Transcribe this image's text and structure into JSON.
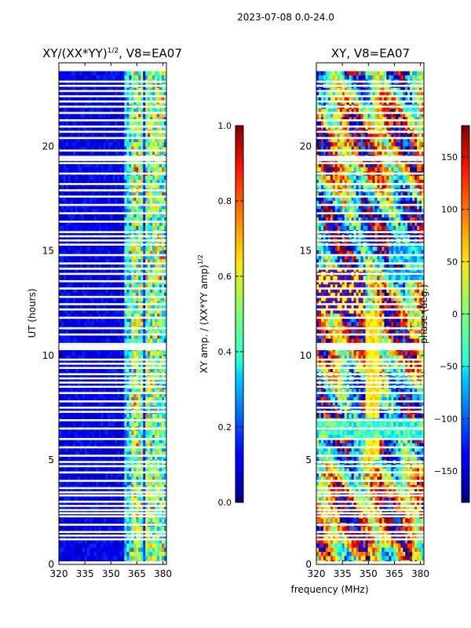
{
  "figure_title": "2023-07-08 0.0-24.0",
  "xlabel_shared": "frequency (MHz)",
  "chart_data": [
    {
      "type": "heatmap",
      "title_main": "XY/(XX*YY)",
      "title_sup": "1/2",
      "title_rest": ", V8=EA07",
      "xlabel": "frequency (MHz)",
      "ylabel": "UT (hours)",
      "xlim": [
        320,
        382
      ],
      "ylim": [
        0,
        24
      ],
      "xticks": [
        320,
        335,
        350,
        365,
        380
      ],
      "yticks": [
        0,
        5,
        10,
        15,
        20
      ],
      "colormap": "jet",
      "colorbar": {
        "label_main": "XY amp. / (XX*YY amp)",
        "label_sup": "1/2",
        "range": [
          0.0,
          1.0
        ],
        "ticks": [
          "0.0",
          "0.2",
          "0.4",
          "0.6",
          "0.8",
          "1.0"
        ]
      }
    },
    {
      "type": "heatmap",
      "title": "XY, V8=EA07",
      "xlabel": "frequency (MHz)",
      "ylabel": "",
      "xlim": [
        320,
        382
      ],
      "ylim": [
        0,
        24
      ],
      "xticks": [
        320,
        335,
        350,
        365,
        380
      ],
      "yticks": [
        0,
        5,
        10,
        15,
        20
      ],
      "colormap": "jet",
      "colorbar": {
        "label": "phase (deg.)",
        "range": [
          -180,
          180
        ],
        "ticks": [
          "−150",
          "−100",
          "−50",
          "0",
          "50",
          "100",
          "150"
        ]
      }
    }
  ],
  "flagged_ut_hours": [
    1.2,
    1.38,
    1.55,
    1.9,
    2.3,
    2.45,
    2.6,
    2.8,
    3.0,
    3.3,
    3.45,
    3.65,
    4.0,
    4.4,
    4.7,
    4.9,
    5.2,
    5.6,
    6.0,
    6.5,
    6.9,
    7.3,
    7.5,
    7.8,
    8.2,
    8.5,
    8.7,
    8.9,
    9.1,
    9.4,
    9.6,
    9.8,
    10.3,
    10.55,
    11.0,
    11.3,
    11.8,
    12.2,
    12.45,
    12.8,
    13.2,
    13.55,
    13.9,
    14.4,
    14.8,
    15.3,
    15.5,
    15.7,
    15.9,
    16.4,
    16.8,
    17.2,
    17.6,
    17.9,
    18.2,
    18.7,
    19.2,
    19.5,
    19.8,
    20.4,
    20.7,
    20.95,
    21.25,
    21.6,
    21.9,
    22.15,
    22.4,
    22.65,
    22.9,
    23.1
  ]
}
